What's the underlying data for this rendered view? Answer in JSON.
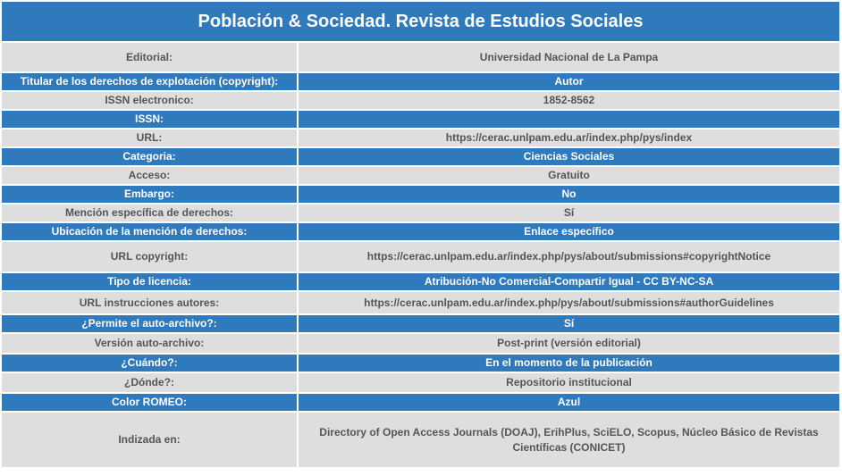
{
  "title": "Población & Sociedad. Revista de Estudios Sociales",
  "colors": {
    "header_blue": "#2f79bd",
    "row_gray": "#dedede",
    "text_gray": "#555555"
  },
  "rows": [
    {
      "label": "Editorial:",
      "value": "Universidad Nacional de La Pampa"
    },
    {
      "label": "Titular de los derechos de explotación (copyright):",
      "value": "Autor"
    },
    {
      "label": "ISSN electronico:",
      "value": "1852-8562"
    },
    {
      "label": "ISSN:",
      "value": ""
    },
    {
      "label": "URL:",
      "value": "https://cerac.unlpam.edu.ar/index.php/pys/index"
    },
    {
      "label": "Categoria:",
      "value": "Ciencias Sociales"
    },
    {
      "label": "Acceso:",
      "value": "Gratuito"
    },
    {
      "label": "Embargo:",
      "value": "No"
    },
    {
      "label": "Mención específica de derechos:",
      "value": "Sí"
    },
    {
      "label": "Ubicación de la mención de derechos:",
      "value": "Enlace específico"
    },
    {
      "label": "URL copyright:",
      "value": "https://cerac.unlpam.edu.ar/index.php/pys/about/submissions#copyrightNotice"
    },
    {
      "label": "Tipo de licencia:",
      "value": "Atribución-No Comercial-Compartir Igual - CC BY-NC-SA"
    },
    {
      "label": "URL instrucciones autores:",
      "value": "https://cerac.unlpam.edu.ar/index.php/pys/about/submissions#authorGuidelines"
    },
    {
      "label": "¿Permite el auto-archivo?:",
      "value": "Sí"
    },
    {
      "label": "Versión auto-archivo:",
      "value": "Post-print (versión editorial)"
    },
    {
      "label": "¿Cuándo?:",
      "value": "En el momento de la publicación"
    },
    {
      "label": "¿Dónde?:",
      "value": "Repositorio institucional"
    },
    {
      "label": "Color ROMEO:",
      "value": "Azul"
    },
    {
      "label": "Indizada en:",
      "value": "Directory of Open Access Journals (DOAJ), ErihPlus, SciELO, Scopus, Núcleo Básico de Revistas Científicas (CONICET)"
    }
  ]
}
